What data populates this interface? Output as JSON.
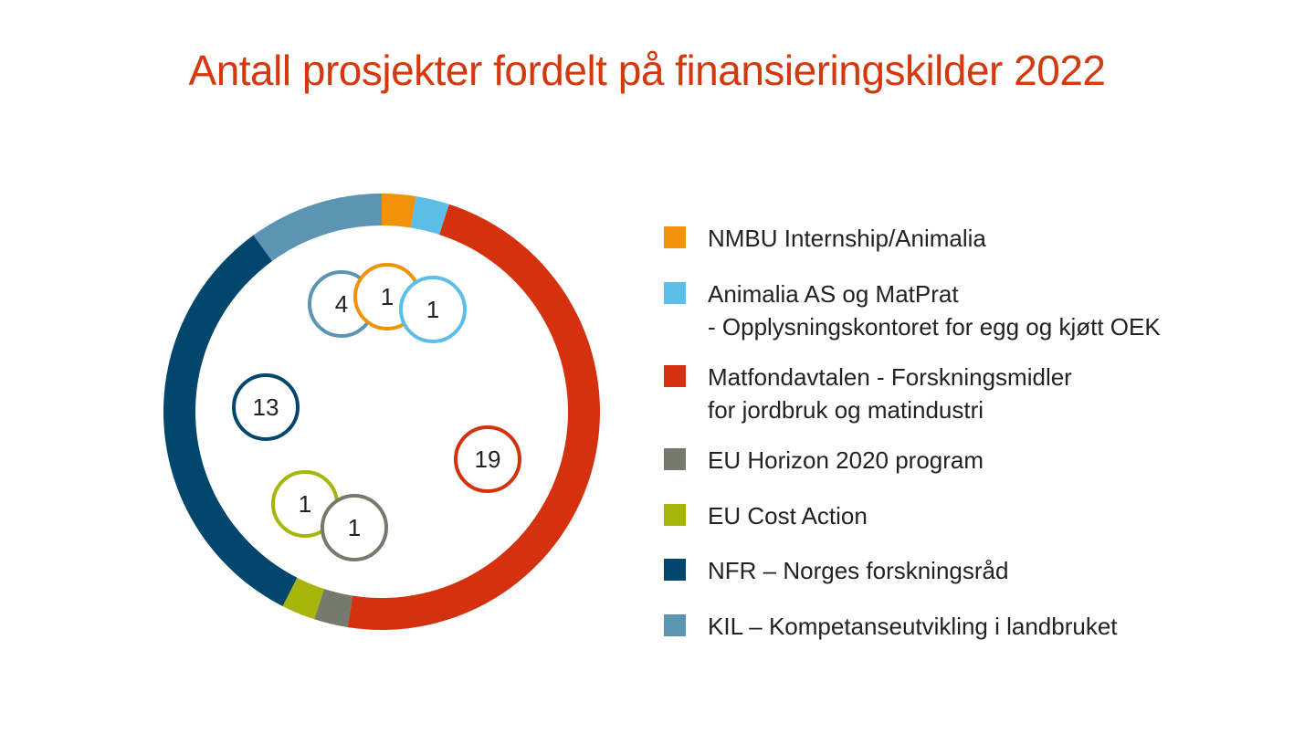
{
  "chart_data": {
    "type": "pie",
    "title": "Antall prosjekter fordelt på finansieringskilder 2022",
    "legend_placement": "right",
    "slices": [
      {
        "label_lines": [
          "NMBU Internship/Animalia"
        ],
        "value": 1,
        "color": "#f0920a"
      },
      {
        "label_lines": [
          "Animalia AS og MatPrat",
          "- Opplysningskontoret for egg og kjøtt OEK"
        ],
        "value": 1,
        "color": "#5bbde8"
      },
      {
        "label_lines": [
          "Matfondavtalen - Forskningsmidler",
          "for jordbruk og matindustri"
        ],
        "value": 19,
        "color": "#d4320f"
      },
      {
        "label_lines": [
          "EU Horizon 2020 program"
        ],
        "value": 1,
        "color": "#767a6c"
      },
      {
        "label_lines": [
          "EU Cost Action"
        ],
        "value": 1,
        "color": "#a7b408"
      },
      {
        "label_lines": [
          "NFR – Norges forskningsråd"
        ],
        "value": 13,
        "color": "#00466d"
      },
      {
        "label_lines": [
          "KIL – Kompetanseutvikling i landbruket"
        ],
        "value": 4,
        "color": "#5c94b3"
      }
    ]
  }
}
